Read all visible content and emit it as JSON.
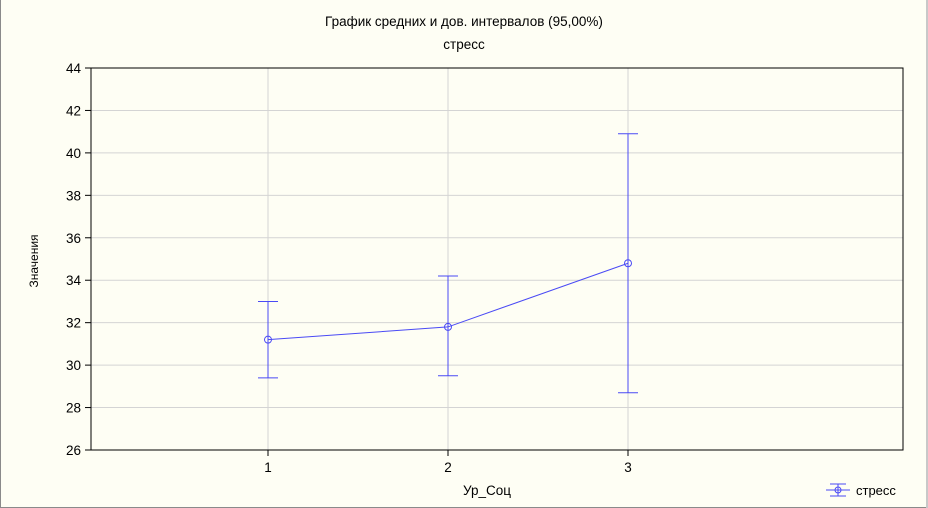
{
  "colors": {
    "background": "#fefef4",
    "series": "#4a4af5",
    "grid": "#d4d4d4",
    "axis": "#000000"
  },
  "chart_data": {
    "type": "line",
    "title": "График средних и  дов. интервалов (95,00%)",
    "subtitle": "стресс",
    "xlabel": "Ур_Соц",
    "ylabel": "Значения",
    "categories": [
      "1",
      "2",
      "3"
    ],
    "ylim": [
      26,
      44
    ],
    "yticks": [
      "26",
      "28",
      "30",
      "32",
      "34",
      "36",
      "38",
      "40",
      "42",
      "44"
    ],
    "grid": true,
    "legend_position": "bottom-right",
    "series": [
      {
        "name": "стресс",
        "values": [
          31.2,
          31.8,
          34.8
        ],
        "lower": [
          29.4,
          29.5,
          28.7
        ],
        "upper": [
          33.0,
          34.2,
          40.9
        ]
      }
    ]
  }
}
